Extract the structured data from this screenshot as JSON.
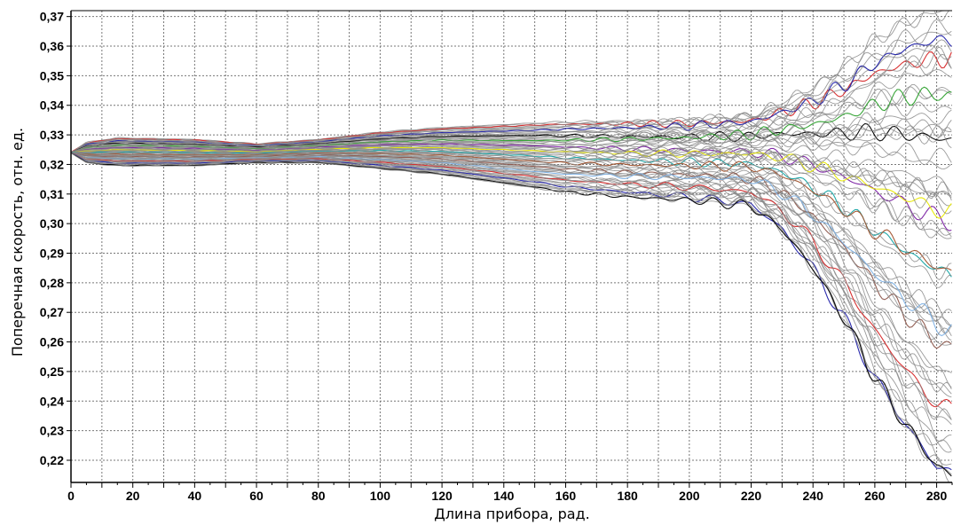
{
  "chart_data": {
    "type": "line",
    "title": "",
    "xlabel": "Длина прибора, рад.",
    "ylabel": "Поперечная скорость, отн. ед.",
    "xlim": [
      0,
      285
    ],
    "ylim": [
      0.2125,
      0.372
    ],
    "x_ticks": [
      "0",
      "20",
      "40",
      "60",
      "80",
      "100",
      "120",
      "140",
      "160",
      "180",
      "200",
      "220",
      "240",
      "260",
      "280"
    ],
    "y_ticks": [
      "0,37",
      "0,36",
      "0,35",
      "0,34",
      "0,33",
      "0,32",
      "0,31",
      "0,30",
      "0,29",
      "0,28",
      "0,27",
      "0,26",
      "0,25",
      "0,24",
      "0,23",
      "0,22"
    ],
    "grid": true,
    "legend": "none",
    "series_style": {
      "count": 64,
      "dominant_color": "#8a8a8a",
      "accent_colors": [
        "#d62728",
        "#1f1fa8",
        "#000000",
        "#2ca02c",
        "#7a1fa2",
        "#e8e800",
        "#17a5a5",
        "#a0522d",
        "#8c564b",
        "#7fb2e5"
      ]
    },
    "envelope": [
      {
        "x": 0,
        "upper": 0.324,
        "lower": 0.324
      },
      {
        "x": 5,
        "upper": 0.3275,
        "lower": 0.3205
      },
      {
        "x": 15,
        "upper": 0.329,
        "lower": 0.3195
      },
      {
        "x": 40,
        "upper": 0.3285,
        "lower": 0.3195
      },
      {
        "x": 60,
        "upper": 0.327,
        "lower": 0.3205
      },
      {
        "x": 80,
        "upper": 0.3285,
        "lower": 0.3205
      },
      {
        "x": 100,
        "upper": 0.331,
        "lower": 0.3185
      },
      {
        "x": 120,
        "upper": 0.3325,
        "lower": 0.3165
      },
      {
        "x": 140,
        "upper": 0.3335,
        "lower": 0.3135
      },
      {
        "x": 160,
        "upper": 0.3345,
        "lower": 0.3105
      },
      {
        "x": 180,
        "upper": 0.335,
        "lower": 0.309
      },
      {
        "x": 200,
        "upper": 0.3355,
        "lower": 0.308
      },
      {
        "x": 220,
        "upper": 0.337,
        "lower": 0.306
      },
      {
        "x": 230,
        "upper": 0.341,
        "lower": 0.298
      },
      {
        "x": 240,
        "upper": 0.346,
        "lower": 0.285
      },
      {
        "x": 250,
        "upper": 0.353,
        "lower": 0.268
      },
      {
        "x": 260,
        "upper": 0.362,
        "lower": 0.248
      },
      {
        "x": 270,
        "upper": 0.368,
        "lower": 0.232
      },
      {
        "x": 280,
        "upper": 0.372,
        "lower": 0.218
      },
      {
        "x": 285,
        "upper": 0.372,
        "lower": 0.215
      }
    ]
  }
}
